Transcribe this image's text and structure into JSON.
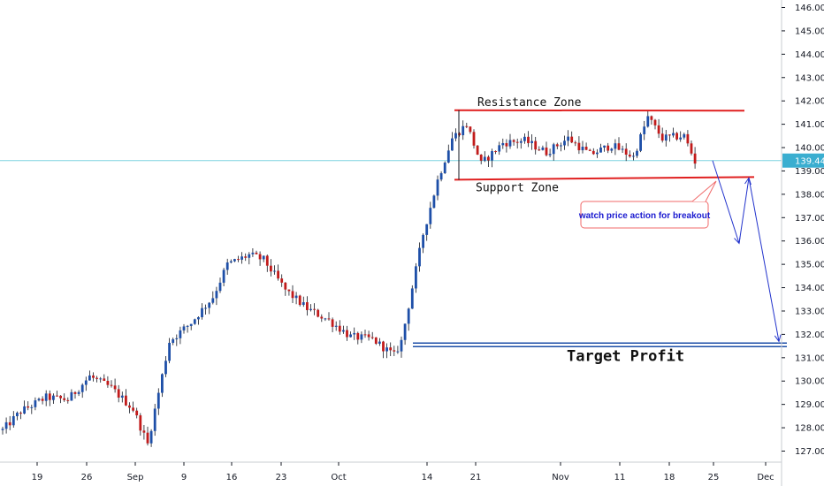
{
  "colors": {
    "bull": "#1e4fa8",
    "bear": "#c21b1b",
    "wick": "#131722",
    "zone_line": "#e02020",
    "target_line": "#1e4fa8",
    "price_line": "#7fd3e0",
    "projection": "#2233cc",
    "callout_border": "#f06a6a",
    "callout_text": "#1a1ad0",
    "price_badge": "#3aaed0"
  },
  "chart_data": {
    "type": "candlestick",
    "ylim": [
      126.5,
      146.4
    ],
    "y_ticks": [
      "146.000",
      "145.000",
      "144.000",
      "143.000",
      "142.000",
      "141.000",
      "140.000",
      "139.000",
      "138.000",
      "137.000",
      "136.000",
      "135.000",
      "134.000",
      "133.000",
      "132.000",
      "131.000",
      "130.000",
      "129.000",
      "128.000",
      "127.000"
    ],
    "x_ticks": [
      "19",
      "26",
      "Sep",
      "9",
      "16",
      "23",
      "Oct",
      "14",
      "21",
      "Nov",
      "11",
      "18",
      "25",
      "Dec"
    ],
    "current_price": "139.444",
    "price_waypoints": [
      [
        0,
        127.9
      ],
      [
        5,
        128.7
      ],
      [
        12,
        129.3
      ],
      [
        18,
        129.2
      ],
      [
        24,
        130.2
      ],
      [
        30,
        129.7
      ],
      [
        36,
        128.8
      ],
      [
        40,
        127.3
      ],
      [
        46,
        131.7
      ],
      [
        52,
        132.5
      ],
      [
        58,
        133.6
      ],
      [
        62,
        135.0
      ],
      [
        68,
        135.4
      ],
      [
        72,
        135.2
      ],
      [
        78,
        133.9
      ],
      [
        84,
        133.1
      ],
      [
        90,
        132.6
      ],
      [
        96,
        131.9
      ],
      [
        102,
        131.8
      ],
      [
        108,
        131.1
      ],
      [
        110,
        131.7
      ],
      [
        113,
        134.0
      ],
      [
        116,
        136.3
      ],
      [
        120,
        138.6
      ],
      [
        124,
        140.4
      ],
      [
        128,
        141.0
      ],
      [
        132,
        139.3
      ],
      [
        138,
        140.2
      ],
      [
        144,
        140.3
      ],
      [
        150,
        139.8
      ],
      [
        156,
        140.4
      ],
      [
        162,
        139.7
      ],
      [
        168,
        140.1
      ],
      [
        174,
        139.6
      ],
      [
        178,
        141.3
      ],
      [
        182,
        140.4
      ],
      [
        188,
        140.5
      ],
      [
        191,
        139.4
      ]
    ],
    "resistance_level": 141.6,
    "support_level": 138.7,
    "target_level": 131.55,
    "projection_points": [
      [
        "current",
        139.4
      ],
      [
        "after 25",
        135.9
      ],
      [
        "before Dec",
        138.7
      ],
      [
        "Dec",
        131.7
      ]
    ],
    "annotations": {
      "resistance": "Resistance Zone",
      "support": "Support Zone",
      "target": "Target Profit",
      "callout": "watch price action for breakout"
    }
  }
}
